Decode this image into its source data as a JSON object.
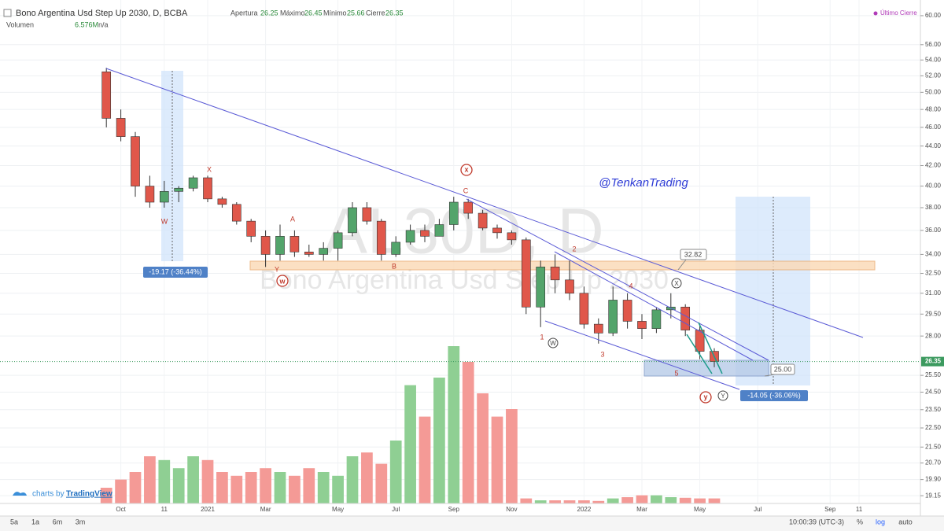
{
  "header": {
    "title": "Bono Argentina Usd Step Up 2030, D, BCBA",
    "ohlc": [
      {
        "label": "Apertura",
        "value": "26.25"
      },
      {
        "label": "Máximo",
        "value": "26.45"
      },
      {
        "label": "Mínimo",
        "value": "25.66"
      },
      {
        "label": "Cierre",
        "value": "26.35"
      }
    ],
    "volume_label": "Volumen",
    "volume_value": "6.576M",
    "volume_ma": "n/a",
    "legend": "Último Cierre"
  },
  "chart_data": {
    "type": "candlestick",
    "log_scale": true,
    "grid": true,
    "up_color": "#53a46b",
    "down_color": "#e0574a",
    "volume_up_color": "#8fcf93",
    "volume_down_color": "#f49a96",
    "categories": [
      null,
      "Oct",
      null,
      null,
      "11",
      null,
      null,
      "2021",
      null,
      null,
      null,
      "Mar",
      null,
      null,
      null,
      null,
      "May",
      null,
      null,
      null,
      "Jul",
      null,
      null,
      null,
      "Sep",
      null,
      null,
      null,
      "Nov",
      null,
      null,
      null,
      null,
      "2022",
      null,
      null,
      null,
      "Mar",
      null,
      null,
      null,
      "May",
      null,
      null,
      null,
      "Jul",
      null,
      null,
      null,
      null,
      "Sep",
      null,
      "11"
    ],
    "open": [
      52.5,
      47,
      45,
      40,
      38.5,
      39.5,
      39.8,
      40.8,
      38.8,
      38.3,
      36.8,
      35.5,
      34,
      35.5,
      34.2,
      34,
      34.5,
      35.8,
      38,
      36.8,
      34,
      35,
      36,
      35.5,
      36.5,
      38.5,
      37.5,
      36.2,
      35.8,
      35.2,
      30,
      33,
      32,
      31,
      28.8,
      28.2,
      30.5,
      29,
      28.5,
      29.8,
      30,
      28.4,
      27,
      null,
      null,
      null,
      null,
      null,
      null,
      null,
      null,
      null,
      null
    ],
    "high": [
      53,
      48,
      45.5,
      41,
      40.5,
      40,
      41,
      41,
      39,
      38.5,
      37,
      36,
      36.5,
      36,
      34.8,
      35,
      36,
      38.5,
      38.5,
      37,
      35.5,
      36.5,
      36.5,
      37,
      39,
      38.8,
      37.8,
      36.5,
      36,
      35.4,
      33.5,
      34,
      33.5,
      31.5,
      29.2,
      31.5,
      31,
      29.5,
      30,
      31,
      30.2,
      28.8,
      27.2,
      null,
      null,
      null,
      null,
      null,
      null,
      null,
      null,
      null,
      null
    ],
    "low": [
      46,
      44.5,
      39,
      38,
      38,
      38.5,
      39.5,
      38.5,
      38,
      36.5,
      35,
      33,
      33.5,
      33.8,
      33.8,
      33.5,
      33.5,
      35.5,
      36.5,
      33.5,
      33.8,
      34.8,
      35,
      35.5,
      36,
      37,
      36,
      35.3,
      34.8,
      29.5,
      28.6,
      31,
      30.5,
      28.5,
      27.5,
      28,
      28.5,
      27.8,
      28.2,
      29.2,
      28,
      26.5,
      26,
      null,
      null,
      null,
      null,
      null,
      null,
      null,
      null,
      null,
      null
    ],
    "close": [
      47,
      45,
      40,
      38.5,
      39.5,
      39.8,
      40.8,
      38.8,
      38.3,
      36.8,
      35.5,
      34,
      35.5,
      34.2,
      34,
      34.5,
      35.8,
      38,
      36.8,
      34,
      35,
      36,
      35.5,
      36.5,
      38.5,
      37.5,
      36.2,
      35.8,
      35.2,
      30,
      33,
      32,
      31,
      28.8,
      28.2,
      30.5,
      29,
      28.5,
      29.8,
      30,
      28.4,
      27,
      26.35,
      null,
      null,
      null,
      null,
      null,
      null,
      null,
      null,
      null,
      null
    ],
    "volume": [
      25,
      38,
      50,
      75,
      69,
      56,
      75,
      69,
      50,
      44,
      50,
      56,
      50,
      44,
      56,
      50,
      44,
      75,
      81,
      63,
      100,
      188,
      138,
      200,
      250,
      225,
      175,
      138,
      150,
      8,
      5,
      5,
      5,
      5,
      4,
      8,
      10,
      13,
      13,
      10,
      9,
      8,
      8,
      null,
      null,
      null,
      null,
      null,
      null,
      null,
      null,
      null,
      null
    ],
    "volume_ylim": [
      0,
      400
    ],
    "ylim": [
      18.8,
      61.7
    ],
    "yticks": [
      {
        "value": 60,
        "label": "60.00"
      },
      {
        "value": 56,
        "label": "56.00"
      },
      {
        "value": 54,
        "label": "54.00"
      },
      {
        "value": 52,
        "label": "52.00"
      },
      {
        "value": 50,
        "label": "50.00"
      },
      {
        "value": 48,
        "label": "48.00"
      },
      {
        "value": 46,
        "label": "46.00"
      },
      {
        "value": 44,
        "label": "44.00"
      },
      {
        "value": 42,
        "label": "42.00"
      },
      {
        "value": 40,
        "label": "40.00"
      },
      {
        "value": 38,
        "label": "38.00"
      },
      {
        "value": 36,
        "label": "36.00"
      },
      {
        "value": 34,
        "label": "34.00"
      },
      {
        "value": 32.5,
        "label": "32.50"
      },
      {
        "value": 31,
        "label": "31.00"
      },
      {
        "value": 29.5,
        "label": "29.50"
      },
      {
        "value": 28,
        "label": "28.00"
      },
      {
        "value": 25.5,
        "label": "25.50"
      },
      {
        "value": 24.5,
        "label": "24.50"
      },
      {
        "value": 23.5,
        "label": "23.50"
      },
      {
        "value": 22.5,
        "label": "22.50"
      },
      {
        "value": 21.5,
        "label": "21.50"
      },
      {
        "value": 20.7,
        "label": "20.70"
      },
      {
        "value": 19.9,
        "label": "19.90"
      },
      {
        "value": 19.15,
        "label": "19.15"
      }
    ],
    "last_price": 26.35,
    "watermark": [
      "AL30D, D",
      "Bono Argentina Usd Step Up 2030"
    ],
    "annotations": [
      "W",
      "X",
      "Y",
      "A",
      "B",
      "C",
      "1",
      "2",
      "3",
      "4",
      "5",
      "w",
      "x",
      "y",
      "W",
      "X",
      "Y",
      "@TenkanTrading",
      "-19.17 (-36.44%)",
      "-14.05 (-36.06%)",
      "32.82",
      "25.00"
    ]
  },
  "footer": {
    "ranges": [
      "5a",
      "1a",
      "6m",
      "3m"
    ],
    "time": "10:00:39 (UTC-3)",
    "options": [
      "%",
      "log",
      "auto"
    ],
    "branding": "charts by",
    "brand": "TradingView"
  }
}
